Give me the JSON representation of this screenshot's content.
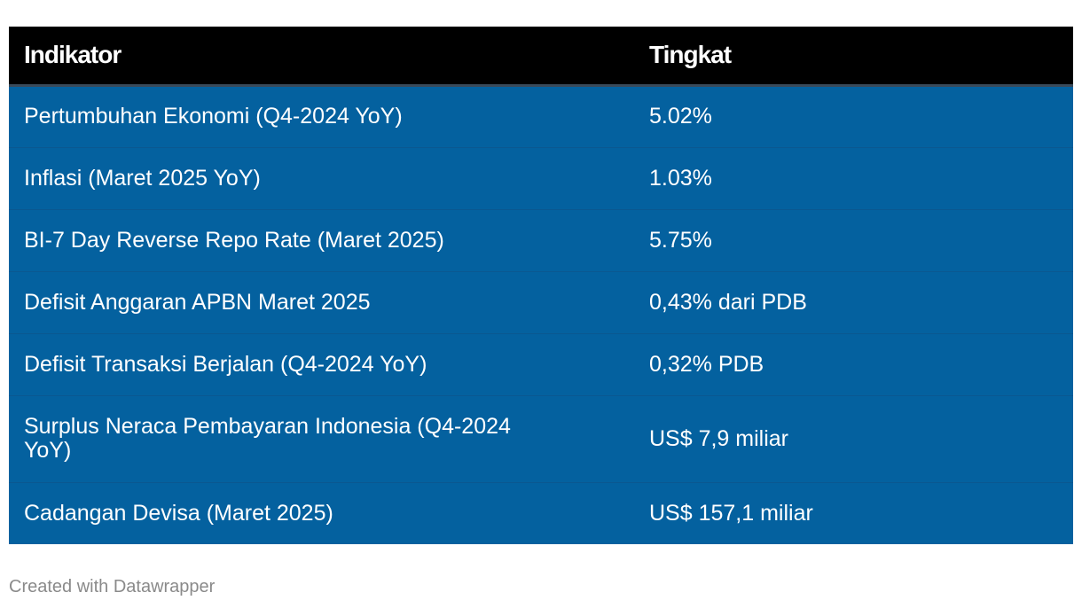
{
  "chart_data": {
    "type": "table",
    "columns": [
      "Indikator",
      "Tingkat"
    ],
    "rows": [
      [
        "Pertumbuhan Ekonomi (Q4-2024 YoY)",
        "5.02%"
      ],
      [
        "Inflasi (Maret 2025 YoY)",
        "1.03%"
      ],
      [
        "BI-7 Day Reverse Repo Rate (Maret 2025)",
        "5.75%"
      ],
      [
        "Defisit Anggaran APBN Maret 2025",
        "0,43% dari PDB"
      ],
      [
        "Defisit Transaksi Berjalan (Q4-2024 YoY)",
        "0,32% PDB"
      ],
      [
        "Surplus Neraca Pembayaran Indonesia (Q4-2024 YoY)",
        "US$ 7,9 miliar"
      ],
      [
        "Cadangan Devisa (Maret 2025)",
        "US$ 157,1 miliar"
      ]
    ]
  },
  "footer": {
    "credit": "Created with Datawrapper"
  },
  "colors": {
    "header_bg": "#000000",
    "row_bg": "#04619f",
    "text": "#ffffff",
    "footer_text": "#8a8a8a"
  }
}
